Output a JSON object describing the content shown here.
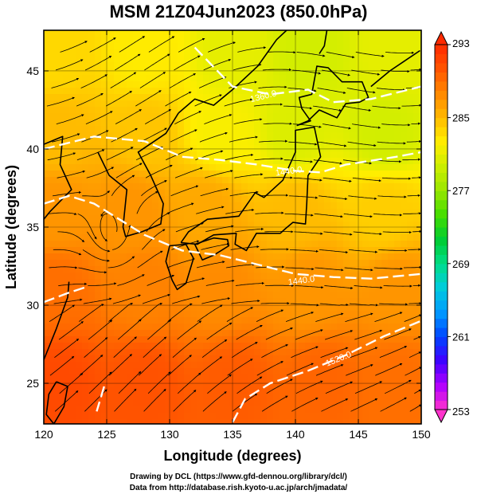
{
  "chart_data": {
    "type": "heatmap",
    "title": "MSM 21Z04Jun2023 (850.0hPa)",
    "xlabel": "Longitude (degrees)",
    "ylabel": "Latitude  (degrees)",
    "xlim": [
      120,
      150
    ],
    "ylim": [
      22.4,
      47.6
    ],
    "xticks": [
      120,
      125,
      130,
      135,
      140,
      145,
      150
    ],
    "yticks": [
      25,
      30,
      35,
      40,
      45
    ],
    "colorbar": {
      "min": 253,
      "max": 293,
      "ticks": [
        253,
        261,
        269,
        277,
        285,
        293
      ],
      "colors": [
        "#ff33cc",
        "#b000ff",
        "#4000ff",
        "#0044ff",
        "#0099ff",
        "#00ccdd",
        "#00dd88",
        "#00cc33",
        "#44dd00",
        "#99e600",
        "#ccee00",
        "#ffee00",
        "#ffbb00",
        "#ff8800",
        "#ff5500",
        "#ff2a00"
      ]
    },
    "temperature_field_K": {
      "note": "approximate temperature samples (lon, lat, K)",
      "points": [
        [
          121,
          46,
          283.5
        ],
        [
          128,
          46,
          282.5
        ],
        [
          135,
          46,
          281
        ],
        [
          141,
          46,
          280
        ],
        [
          148,
          46,
          281
        ],
        [
          121,
          41,
          285
        ],
        [
          128,
          41,
          284.5
        ],
        [
          134,
          41,
          282
        ],
        [
          140,
          41,
          280.5
        ],
        [
          147,
          41,
          280
        ],
        [
          121,
          36,
          287
        ],
        [
          127,
          36,
          287
        ],
        [
          133,
          36,
          286
        ],
        [
          140,
          36,
          285
        ],
        [
          147,
          36,
          284
        ],
        [
          121,
          31,
          289
        ],
        [
          128,
          31,
          288
        ],
        [
          134,
          31,
          287.5
        ],
        [
          141,
          31,
          287
        ],
        [
          148,
          31,
          287
        ],
        [
          121,
          25,
          291
        ],
        [
          128,
          25,
          290.5
        ],
        [
          135,
          25,
          290
        ],
        [
          142,
          25,
          289.5
        ],
        [
          148,
          25,
          289
        ]
      ]
    },
    "contour_labels": [
      "1360.0",
      "1440.0",
      "1520.0"
    ],
    "contours": [
      {
        "value": 1360,
        "points": [
          [
            132,
            46.5
          ],
          [
            135,
            44
          ],
          [
            138,
            43.5
          ],
          [
            141,
            43.8
          ],
          [
            143,
            43
          ],
          [
            146,
            43.2
          ],
          [
            150,
            44
          ]
        ]
      },
      {
        "value": 1440,
        "points": [
          [
            120,
            40
          ],
          [
            124,
            40.8
          ],
          [
            128,
            40.5
          ],
          [
            131,
            39.5
          ],
          [
            134,
            39.3
          ],
          [
            137,
            39
          ],
          [
            140,
            38.6
          ],
          [
            142,
            38.5
          ],
          [
            144,
            39
          ],
          [
            148,
            39.5
          ],
          [
            150,
            39.8
          ]
        ]
      },
      {
        "value": 1440,
        "points": [
          [
            120,
            36.5
          ],
          [
            122,
            37
          ],
          [
            124,
            36.5
          ],
          [
            126,
            35.5
          ],
          [
            128,
            34.5
          ],
          [
            131,
            33.5
          ],
          [
            134,
            33.2
          ],
          [
            137,
            32.6
          ],
          [
            140,
            32
          ],
          [
            143,
            31.8
          ],
          [
            146,
            31.7
          ],
          [
            150,
            32
          ]
        ]
      },
      {
        "value": 1520,
        "points": [
          [
            135,
            22.5
          ],
          [
            136,
            24
          ],
          [
            138,
            25
          ],
          [
            141,
            25.8
          ],
          [
            144,
            26.8
          ],
          [
            147,
            28
          ],
          [
            150,
            29
          ]
        ]
      },
      {
        "value": 1520,
        "points": [
          [
            120,
            30.2
          ],
          [
            122,
            30.8
          ],
          [
            123.5,
            31.2
          ]
        ]
      },
      {
        "value": 1520,
        "points": [
          [
            124.8,
            24.8
          ],
          [
            124.2,
            23.2
          ]
        ]
      }
    ],
    "coastlines": [
      {
        "name": "Korean Peninsula",
        "points": [
          [
            124.3,
            39.8
          ],
          [
            125.2,
            38.3
          ],
          [
            126.6,
            37.4
          ],
          [
            126.3,
            35.0
          ],
          [
            126.5,
            34.4
          ],
          [
            127.8,
            34.7
          ],
          [
            129.3,
            35.2
          ],
          [
            129.5,
            36.5
          ],
          [
            128.5,
            38.3
          ],
          [
            127.5,
            39.8
          ],
          [
            129.7,
            41.0
          ],
          [
            130.7,
            42.3
          ]
        ]
      },
      {
        "name": "China coast",
        "points": [
          [
            120,
            40.3
          ],
          [
            121.5,
            40.8
          ],
          [
            121.3,
            39.0
          ],
          [
            122.2,
            37.4
          ],
          [
            120.5,
            36.0
          ],
          [
            119.5,
            35.0
          ]
        ]
      },
      {
        "name": "China south coast",
        "points": [
          [
            122.0,
            31.5
          ],
          [
            121.9,
            30.5
          ],
          [
            121.0,
            28.5
          ],
          [
            120.0,
            26.5
          ]
        ]
      },
      {
        "name": "Taiwan",
        "points": [
          [
            121.0,
            25.1
          ],
          [
            121.9,
            24.8
          ],
          [
            121.6,
            23.5
          ],
          [
            120.8,
            22.4
          ],
          [
            120.2,
            23.0
          ],
          [
            120.4,
            24.3
          ],
          [
            121.0,
            25.1
          ]
        ]
      },
      {
        "name": "Kyushu",
        "points": [
          [
            130.0,
            33.8
          ],
          [
            131.3,
            33.9
          ],
          [
            131.9,
            33.0
          ],
          [
            131.3,
            31.4
          ],
          [
            130.6,
            31.0
          ],
          [
            130.2,
            31.6
          ],
          [
            129.7,
            32.8
          ],
          [
            130.0,
            33.8
          ]
        ]
      },
      {
        "name": "Shikoku",
        "points": [
          [
            132.0,
            33.9
          ],
          [
            133.5,
            34.3
          ],
          [
            134.6,
            34.2
          ],
          [
            134.7,
            33.8
          ],
          [
            133.5,
            33.2
          ],
          [
            132.6,
            32.9
          ],
          [
            132.0,
            33.9
          ]
        ]
      },
      {
        "name": "Honshu",
        "points": [
          [
            130.9,
            34.0
          ],
          [
            131.5,
            34.7
          ],
          [
            133.0,
            35.5
          ],
          [
            135.5,
            35.7
          ],
          [
            136.8,
            37.2
          ],
          [
            137.5,
            36.9
          ],
          [
            139.0,
            38.0
          ],
          [
            140.0,
            39.8
          ],
          [
            140.0,
            41.2
          ],
          [
            141.5,
            41.4
          ],
          [
            142.0,
            39.5
          ],
          [
            141.0,
            38.3
          ],
          [
            140.9,
            36.5
          ],
          [
            140.8,
            35.2
          ],
          [
            139.8,
            35.3
          ],
          [
            139.2,
            34.9
          ],
          [
            138.8,
            34.6
          ],
          [
            138.2,
            34.6
          ],
          [
            136.9,
            34.6
          ],
          [
            136.1,
            33.5
          ],
          [
            135.2,
            33.9
          ],
          [
            135.3,
            34.6
          ],
          [
            133.5,
            34.5
          ],
          [
            132.2,
            33.9
          ],
          [
            130.9,
            34.0
          ]
        ]
      },
      {
        "name": "Hokkaido",
        "points": [
          [
            140.1,
            41.5
          ],
          [
            141.2,
            41.8
          ],
          [
            140.5,
            42.6
          ],
          [
            140.3,
            43.3
          ],
          [
            141.3,
            43.5
          ],
          [
            141.7,
            45.3
          ],
          [
            142.6,
            45.2
          ],
          [
            143.7,
            44.3
          ],
          [
            145.3,
            44.3
          ],
          [
            145.8,
            43.3
          ],
          [
            145.1,
            43.0
          ],
          [
            144.0,
            42.9
          ],
          [
            143.3,
            42.0
          ],
          [
            141.9,
            42.5
          ],
          [
            141.0,
            41.8
          ],
          [
            140.1,
            41.5
          ]
        ]
      },
      {
        "name": "Sakhalin",
        "points": [
          [
            141.9,
            46.1
          ],
          [
            142.3,
            46.6
          ],
          [
            142.5,
            47.6
          ]
        ]
      },
      {
        "name": "Russian coast",
        "points": [
          [
            130.7,
            42.3
          ],
          [
            132.0,
            43.2
          ],
          [
            133.5,
            42.8
          ],
          [
            135.0,
            43.8
          ],
          [
            137.0,
            45.3
          ],
          [
            138.5,
            47.0
          ],
          [
            139.3,
            47.6
          ]
        ]
      },
      {
        "name": "Kuril Islands",
        "points": [
          [
            146.0,
            44.0
          ],
          [
            147.5,
            45.0
          ],
          [
            148.8,
            45.7
          ],
          [
            149.9,
            46.3
          ]
        ]
      }
    ],
    "wind_field": "streamlines (approximate)"
  },
  "credits": {
    "line1": "Drawing by DCL (https://www.gfd-dennou.org/library/dcl/)",
    "line2": "Data from http://database.rish.kyoto-u.ac.jp/arch/jmadata/"
  }
}
